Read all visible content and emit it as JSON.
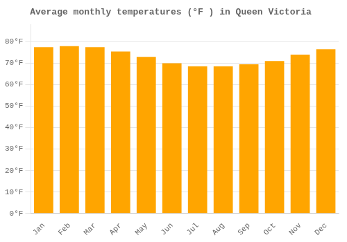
{
  "chart_data": {
    "type": "bar",
    "title": "Average monthly temperatures (°F ) in Queen Victoria",
    "categories": [
      "Jan",
      "Feb",
      "Mar",
      "Apr",
      "May",
      "Jun",
      "Jul",
      "Aug",
      "Sep",
      "Oct",
      "Nov",
      "Dec"
    ],
    "values": [
      77.5,
      78.0,
      77.5,
      75.5,
      73.0,
      70.0,
      68.5,
      68.5,
      69.5,
      71.0,
      74.0,
      76.5
    ],
    "color": "#FFA500",
    "ylim": [
      0,
      88
    ],
    "yticks": [
      {
        "value": 0,
        "label": "0°F"
      },
      {
        "value": 10,
        "label": "10°F"
      },
      {
        "value": 20,
        "label": "20°F"
      },
      {
        "value": 30,
        "label": "30°F"
      },
      {
        "value": 40,
        "label": "40°F"
      },
      {
        "value": 50,
        "label": "50°F"
      },
      {
        "value": 60,
        "label": "60°F"
      },
      {
        "value": 70,
        "label": "70°F"
      },
      {
        "value": 80,
        "label": "80°F"
      }
    ],
    "grid": true
  }
}
